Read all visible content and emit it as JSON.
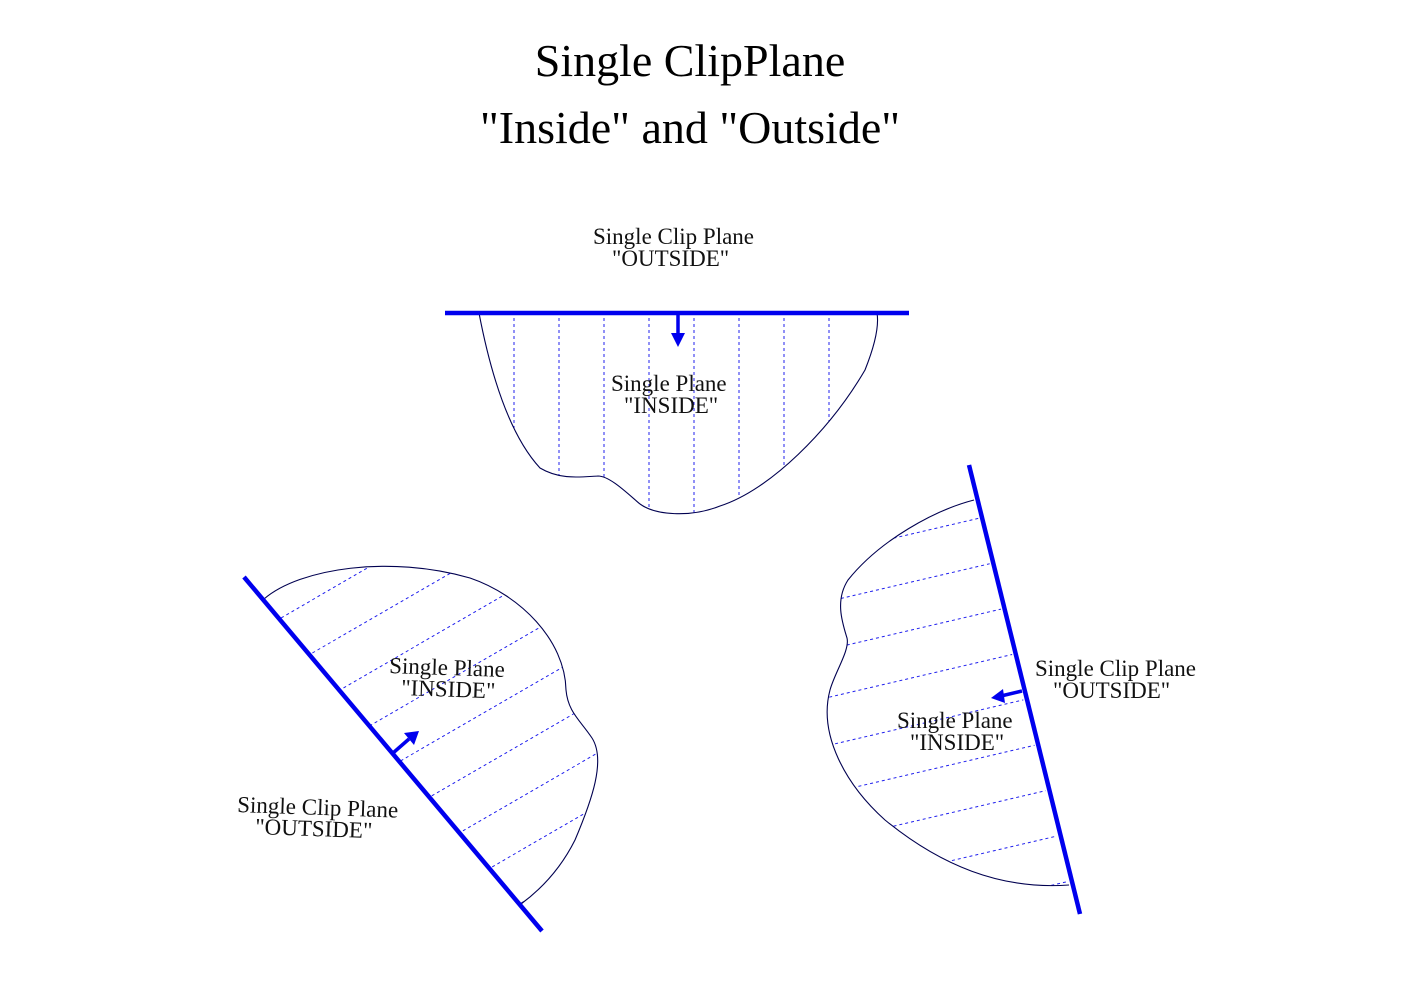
{
  "title": {
    "line1": "Single ClipPlane",
    "line2": "\"Inside\" and \"Outside\""
  },
  "diagrams": {
    "top": {
      "outside_line1": "Single Clip Plane",
      "outside_line2": "\"OUTSIDE\"",
      "inside_line1": "Single Plane",
      "inside_line2": "\"INSIDE\""
    },
    "left": {
      "outside_line1": "Single Clip Plane",
      "outside_line2": "\"OUTSIDE\"",
      "inside_line1": "Single Plane",
      "inside_line2": "\"INSIDE\""
    },
    "right": {
      "outside_line1": "Single Clip Plane",
      "outside_line2": "\"OUTSIDE\"",
      "inside_line1": "Single Plane",
      "inside_line2": "\"INSIDE\""
    }
  },
  "colors": {
    "plane": "#0000ee",
    "outline": "#000050",
    "hatch": "#2020ee",
    "text": "#111111"
  }
}
